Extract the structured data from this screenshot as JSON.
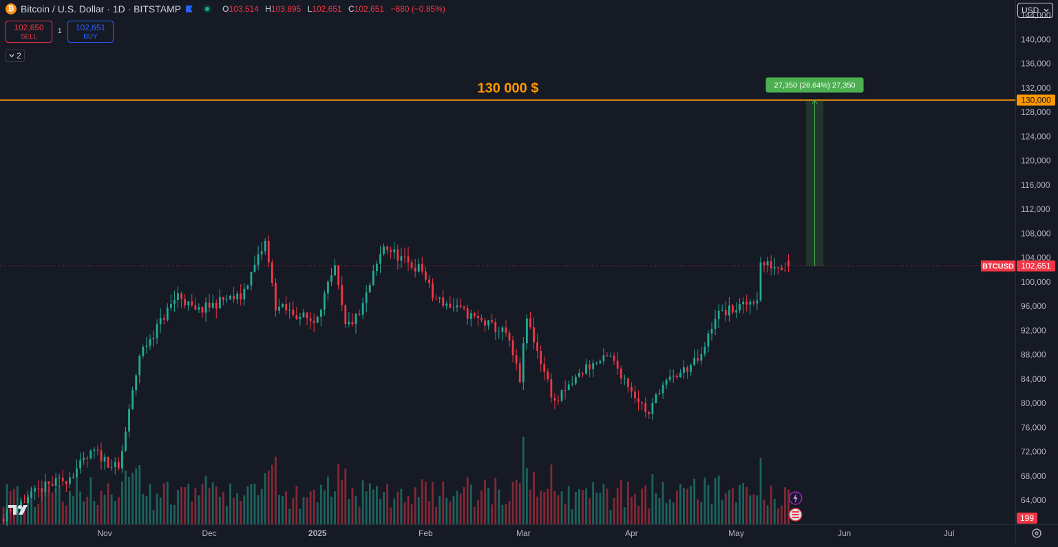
{
  "header": {
    "logo_glyph": "₿",
    "title": "Bitcoin / U.S. Dollar · 1D · BITSTAMP",
    "ohlc": {
      "o_label": "O",
      "o": "103,514",
      "h_label": "H",
      "h": "103,895",
      "l_label": "L",
      "l": "102,651",
      "c_label": "C",
      "c": "102,651",
      "change": "−880 (−0.85%)"
    }
  },
  "trade": {
    "sell_price": "102,650",
    "sell_label": "SELL",
    "spread": "1",
    "buy_price": "102,651",
    "buy_label": "BUY"
  },
  "indicators_toggle": {
    "count": "2"
  },
  "currency_button": "USD",
  "colors": {
    "background": "#161a25",
    "up": "#22ab94",
    "down": "#f23645",
    "annotation": "#ff9800",
    "target_label": "#4caf50"
  },
  "chart_data": {
    "type": "candlestick",
    "symbol": "BTCUSD",
    "last_price": "102,651",
    "volume_label": "199",
    "ylim": [
      62000,
      148000
    ],
    "y_ticks": [
      "144,000",
      "140,000",
      "136,000",
      "132,000",
      "128,000",
      "124,000",
      "120,000",
      "116,000",
      "112,000",
      "108,000",
      "104,000",
      "100,000",
      "96,000",
      "92,000",
      "88,000",
      "84,000",
      "80,000",
      "76,000",
      "72,000",
      "68,000",
      "64,000"
    ],
    "x_ticks": [
      {
        "label": "Nov",
        "date": "2024-11-01"
      },
      {
        "label": "Dec",
        "date": "2024-12-01"
      },
      {
        "label": "2025",
        "date": "2025-01-01"
      },
      {
        "label": "Feb",
        "date": "2025-02-01"
      },
      {
        "label": "Mar",
        "date": "2025-03-01"
      },
      {
        "label": "Apr",
        "date": "2025-04-01"
      },
      {
        "label": "May",
        "date": "2025-05-01"
      },
      {
        "label": "Jun",
        "date": "2025-06-01"
      },
      {
        "label": "Jul",
        "date": "2025-07-01"
      }
    ],
    "start_date": "2024-10-02",
    "end_date": "2025-07-20",
    "close_anchors": [
      [
        "2024-10-02",
        61000
      ],
      [
        "2024-10-14",
        66000
      ],
      [
        "2024-10-21",
        67500
      ],
      [
        "2024-10-29",
        72000
      ],
      [
        "2024-11-05",
        69000
      ],
      [
        "2024-11-11",
        88000
      ],
      [
        "2024-11-22",
        98000
      ],
      [
        "2024-11-27",
        95000
      ],
      [
        "2024-12-05",
        97000
      ],
      [
        "2024-12-10",
        97500
      ],
      [
        "2024-12-17",
        106500
      ],
      [
        "2024-12-20",
        96000
      ],
      [
        "2024-12-31",
        93500
      ],
      [
        "2025-01-06",
        102000
      ],
      [
        "2025-01-09",
        92500
      ],
      [
        "2025-01-13",
        94500
      ],
      [
        "2025-01-20",
        106000
      ],
      [
        "2025-01-27",
        103000
      ],
      [
        "2025-01-31",
        102000
      ],
      [
        "2025-02-03",
        97500
      ],
      [
        "2025-02-24",
        91500
      ],
      [
        "2025-02-28",
        84000
      ],
      [
        "2025-03-02",
        94000
      ],
      [
        "2025-03-10",
        80000
      ],
      [
        "2025-03-19",
        86000
      ],
      [
        "2025-03-26",
        87500
      ],
      [
        "2025-04-06",
        78000
      ],
      [
        "2025-04-09",
        82500
      ],
      [
        "2025-04-21",
        87500
      ],
      [
        "2025-04-25",
        94500
      ],
      [
        "2025-05-03",
        96000
      ],
      [
        "2025-05-07",
        97500
      ],
      [
        "2025-05-08",
        103000
      ],
      [
        "2025-05-12",
        102700
      ],
      [
        "2025-05-16",
        102651
      ]
    ],
    "horizontal_line": {
      "price": 130000,
      "label": "130 000 $",
      "axis_label": "130,000"
    },
    "price_range": {
      "from_date": "2025-05-21",
      "to_date": "2025-05-26",
      "from": 102651,
      "to": 130000,
      "label": "27,350 (26.64%) 27,350"
    }
  }
}
